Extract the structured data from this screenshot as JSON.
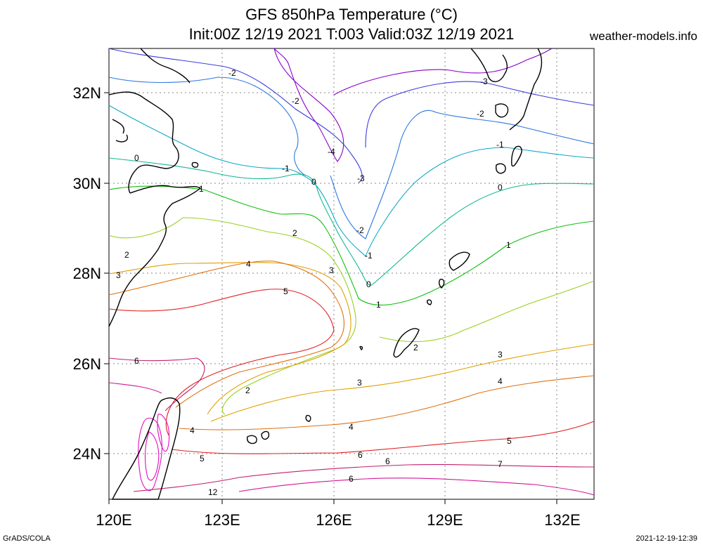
{
  "header": {
    "title_line1": "GFS 850hPa Temperature (°C)",
    "title_line2": "Init:00Z 12/19 2021 T:003 Valid:03Z 12/19 2021",
    "site": "weather-models.info"
  },
  "footer": {
    "left": "GrADS/COLA",
    "right": "2021-12-19-12:39"
  },
  "axes": {
    "x_ticks": [
      "120E",
      "123E",
      "126E",
      "129E",
      "132E"
    ],
    "y_ticks": [
      "32N",
      "30N",
      "28N",
      "26N",
      "24N"
    ]
  },
  "map": {
    "lon_range": [
      120,
      133
    ],
    "lat_range": [
      23,
      33
    ],
    "grid": true,
    "variable": "850hPa temperature",
    "contour_colors": {
      "-4": "#8a00c8",
      "-3": "#3c3cdc",
      "-2": "#2c78e0",
      "-1": "#10a8c8",
      "0": "#10b890",
      "1": "#10c010",
      "2": "#98d020",
      "3": "#e0a000",
      "4": "#e07010",
      "5": "#e02020",
      "6": "#c0206c",
      "7": "#d01898",
      "12": "#e010c0"
    },
    "contour_labels": [
      {
        "text": "-2"
      },
      {
        "text": "-2"
      },
      {
        "text": "-4"
      },
      {
        "text": "-3"
      },
      {
        "text": "-3"
      },
      {
        "text": "-2"
      },
      {
        "text": "-1"
      },
      {
        "text": "-1"
      },
      {
        "text": "0"
      },
      {
        "text": "0"
      },
      {
        "text": "0"
      },
      {
        "text": "1"
      },
      {
        "text": "-2"
      },
      {
        "text": "-1"
      },
      {
        "text": "0"
      },
      {
        "text": "1"
      },
      {
        "text": "1"
      },
      {
        "text": "2"
      },
      {
        "text": "2"
      },
      {
        "text": "3"
      },
      {
        "text": "3"
      },
      {
        "text": "4"
      },
      {
        "text": "5"
      },
      {
        "text": "2"
      },
      {
        "text": "3"
      },
      {
        "text": "3"
      },
      {
        "text": "2"
      },
      {
        "text": "6"
      },
      {
        "text": "4"
      },
      {
        "text": "4"
      },
      {
        "text": "4"
      },
      {
        "text": "5"
      },
      {
        "text": "5"
      },
      {
        "text": "6"
      },
      {
        "text": "6"
      },
      {
        "text": "7"
      },
      {
        "text": "6"
      },
      {
        "text": "12"
      }
    ]
  }
}
